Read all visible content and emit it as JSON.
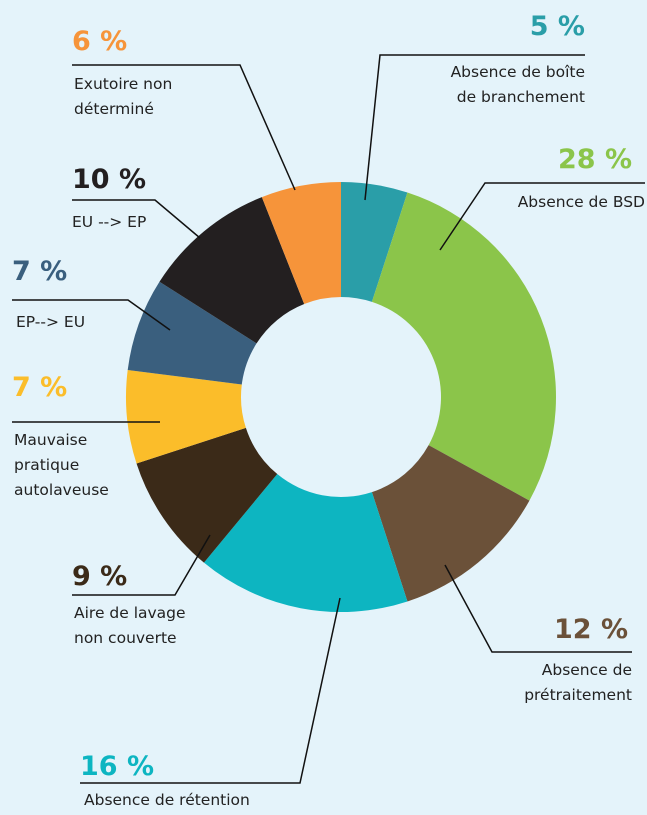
{
  "chart_data": {
    "type": "donut",
    "categories": [
      "Absence de boîte\nde branchement",
      "Absence de BSD",
      "Absence de\nprétraitement",
      "Absence de rétention",
      "Aire de lavage\nnon couverte",
      "Mauvaise\npratique\nautolaveuse",
      "EP--> EU",
      "EU --> EP",
      "Exutoire non\ndéterminé"
    ],
    "values": [
      5,
      28,
      12,
      16,
      9,
      7,
      7,
      10,
      6
    ],
    "value_labels": [
      "5 %",
      "28 %",
      "12 %",
      "16 %",
      "9 %",
      "7 %",
      "7 %",
      "10 %",
      "6 %"
    ],
    "colors": [
      "#2a9ea8",
      "#8bc54a",
      "#6b5139",
      "#0db5c1",
      "#3b2a18",
      "#fbbd2a",
      "#3a5f7e",
      "#231f20",
      "#f6943a"
    ]
  }
}
